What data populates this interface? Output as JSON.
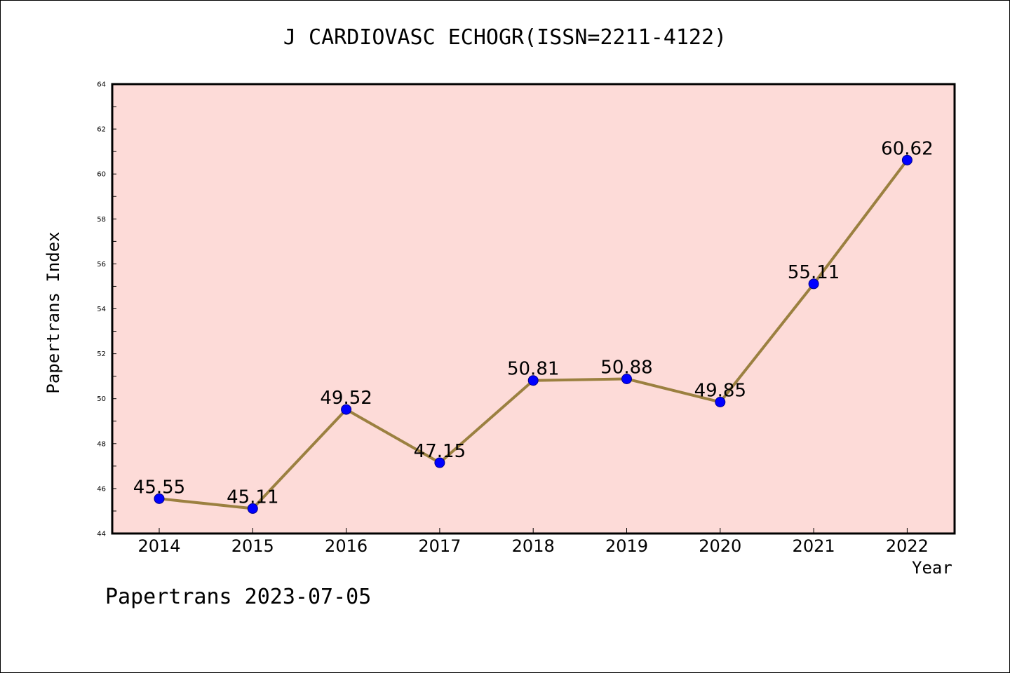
{
  "chart_data": {
    "type": "line",
    "title": "J CARDIOVASC ECHOGR(ISSN=2211-4122)",
    "xlabel": "Year",
    "ylabel": "Papertrans Index",
    "x": [
      "2014",
      "2015",
      "2016",
      "2017",
      "2018",
      "2019",
      "2020",
      "2021",
      "2022"
    ],
    "values": [
      45.55,
      45.11,
      49.52,
      47.15,
      50.81,
      50.88,
      49.85,
      55.11,
      60.62
    ],
    "data_labels": [
      "45.55",
      "45.11",
      "49.52",
      "47.15",
      "50.81",
      "50.88",
      "49.85",
      "55.11",
      "60.62"
    ],
    "ylim": [
      44,
      64
    ],
    "yticks": [
      "44",
      "46",
      "48",
      "50",
      "52",
      "54",
      "56",
      "58",
      "60",
      "62",
      "64"
    ],
    "grid": false,
    "legend": "none",
    "colors": {
      "plot_background": "#fddbd8",
      "line": "#9b8040",
      "marker": "#0000ff",
      "axis": "#000000"
    },
    "footer": "Papertrans 2023-07-05"
  }
}
